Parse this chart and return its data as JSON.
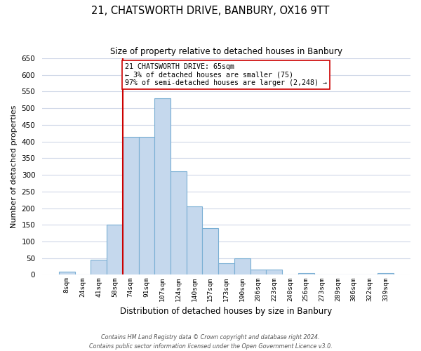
{
  "title": "21, CHATSWORTH DRIVE, BANBURY, OX16 9TT",
  "subtitle": "Size of property relative to detached houses in Banbury",
  "xlabel": "Distribution of detached houses by size in Banbury",
  "ylabel": "Number of detached properties",
  "bar_labels": [
    "8sqm",
    "24sqm",
    "41sqm",
    "58sqm",
    "74sqm",
    "91sqm",
    "107sqm",
    "124sqm",
    "140sqm",
    "157sqm",
    "173sqm",
    "190sqm",
    "206sqm",
    "223sqm",
    "240sqm",
    "256sqm",
    "273sqm",
    "289sqm",
    "306sqm",
    "322sqm",
    "339sqm"
  ],
  "bar_values": [
    10,
    0,
    45,
    150,
    415,
    415,
    530,
    310,
    205,
    140,
    35,
    50,
    15,
    15,
    0,
    5,
    0,
    0,
    0,
    0,
    5
  ],
  "bar_color": "#c5d8ed",
  "bar_edgecolor": "#7aafd4",
  "vline_x": 3.5,
  "vline_color": "#cc0000",
  "ylim": [
    0,
    650
  ],
  "yticks": [
    0,
    50,
    100,
    150,
    200,
    250,
    300,
    350,
    400,
    450,
    500,
    550,
    600,
    650
  ],
  "annotation_text": "21 CHATSWORTH DRIVE: 65sqm\n← 3% of detached houses are smaller (75)\n97% of semi-detached houses are larger (2,248) →",
  "annotation_box_edgecolor": "#cc0000",
  "footer_line1": "Contains HM Land Registry data © Crown copyright and database right 2024.",
  "footer_line2": "Contains public sector information licensed under the Open Government Licence v3.0.",
  "background_color": "#ffffff",
  "grid_color": "#d0d8e8"
}
